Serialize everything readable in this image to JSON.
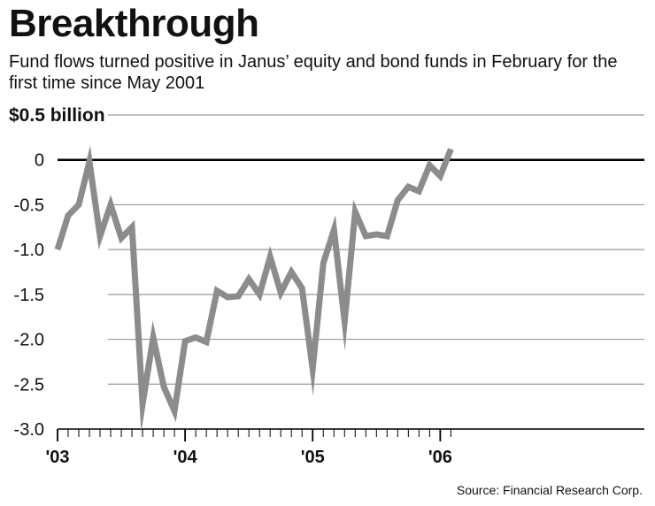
{
  "title": "Breakthrough",
  "subtitle": "Fund flows turned positive in Janus’ equity and bond funds in February for the first time since May 2001",
  "source": "Source: Financial Research Corp.",
  "colors": {
    "line": "#8c8c8c",
    "grid": "#9a9a9a",
    "zero_line": "#000000",
    "text": "#111111"
  },
  "chart_data": {
    "type": "line",
    "title": "Breakthrough",
    "ylabel": "$0.5 billion",
    "ylim": [
      -3.0,
      0.5
    ],
    "grid": true,
    "y_ticks": [
      0.5,
      0,
      -0.5,
      -1.0,
      -1.5,
      -2.0,
      -2.5,
      -3.0
    ],
    "y_tick_labels": [
      "$0.5 billion",
      "0",
      "-0.5",
      "-1.0",
      "-1.5",
      "-2.0",
      "-2.5",
      "-3.0"
    ],
    "x_ticks": [
      "2003-01",
      "2004-01",
      "2005-01",
      "2006-01"
    ],
    "x_tick_labels": [
      "'03",
      "'04",
      "'05",
      "'06"
    ],
    "x_range": [
      "2003-01",
      "2006-02"
    ],
    "series": [
      {
        "x": [
          "2003-01",
          "2003-02",
          "2003-03",
          "2003-04",
          "2003-05",
          "2003-06",
          "2003-07",
          "2003-08",
          "2003-09",
          "2003-10",
          "2003-11",
          "2003-12",
          "2004-01",
          "2004-02",
          "2004-03",
          "2004-04",
          "2004-05",
          "2004-06",
          "2004-07",
          "2004-08",
          "2004-09",
          "2004-10",
          "2004-11",
          "2004-12",
          "2005-01",
          "2005-02",
          "2005-03",
          "2005-04",
          "2005-05",
          "2005-06",
          "2005-07",
          "2005-08",
          "2005-09",
          "2005-10",
          "2005-11",
          "2005-12",
          "2006-01",
          "2006-02"
        ],
        "values": [
          -1.0,
          -0.62,
          -0.5,
          -0.02,
          -0.85,
          -0.5,
          -0.87,
          -0.75,
          -2.72,
          -1.98,
          -2.53,
          -2.8,
          -2.02,
          -1.98,
          -2.03,
          -1.46,
          -1.53,
          -1.52,
          -1.33,
          -1.5,
          -1.08,
          -1.48,
          -1.25,
          -1.43,
          -2.33,
          -1.15,
          -0.78,
          -1.8,
          -0.58,
          -0.85,
          -0.83,
          -0.85,
          -0.45,
          -0.3,
          -0.35,
          -0.06,
          -0.18,
          0.12
        ]
      }
    ]
  }
}
